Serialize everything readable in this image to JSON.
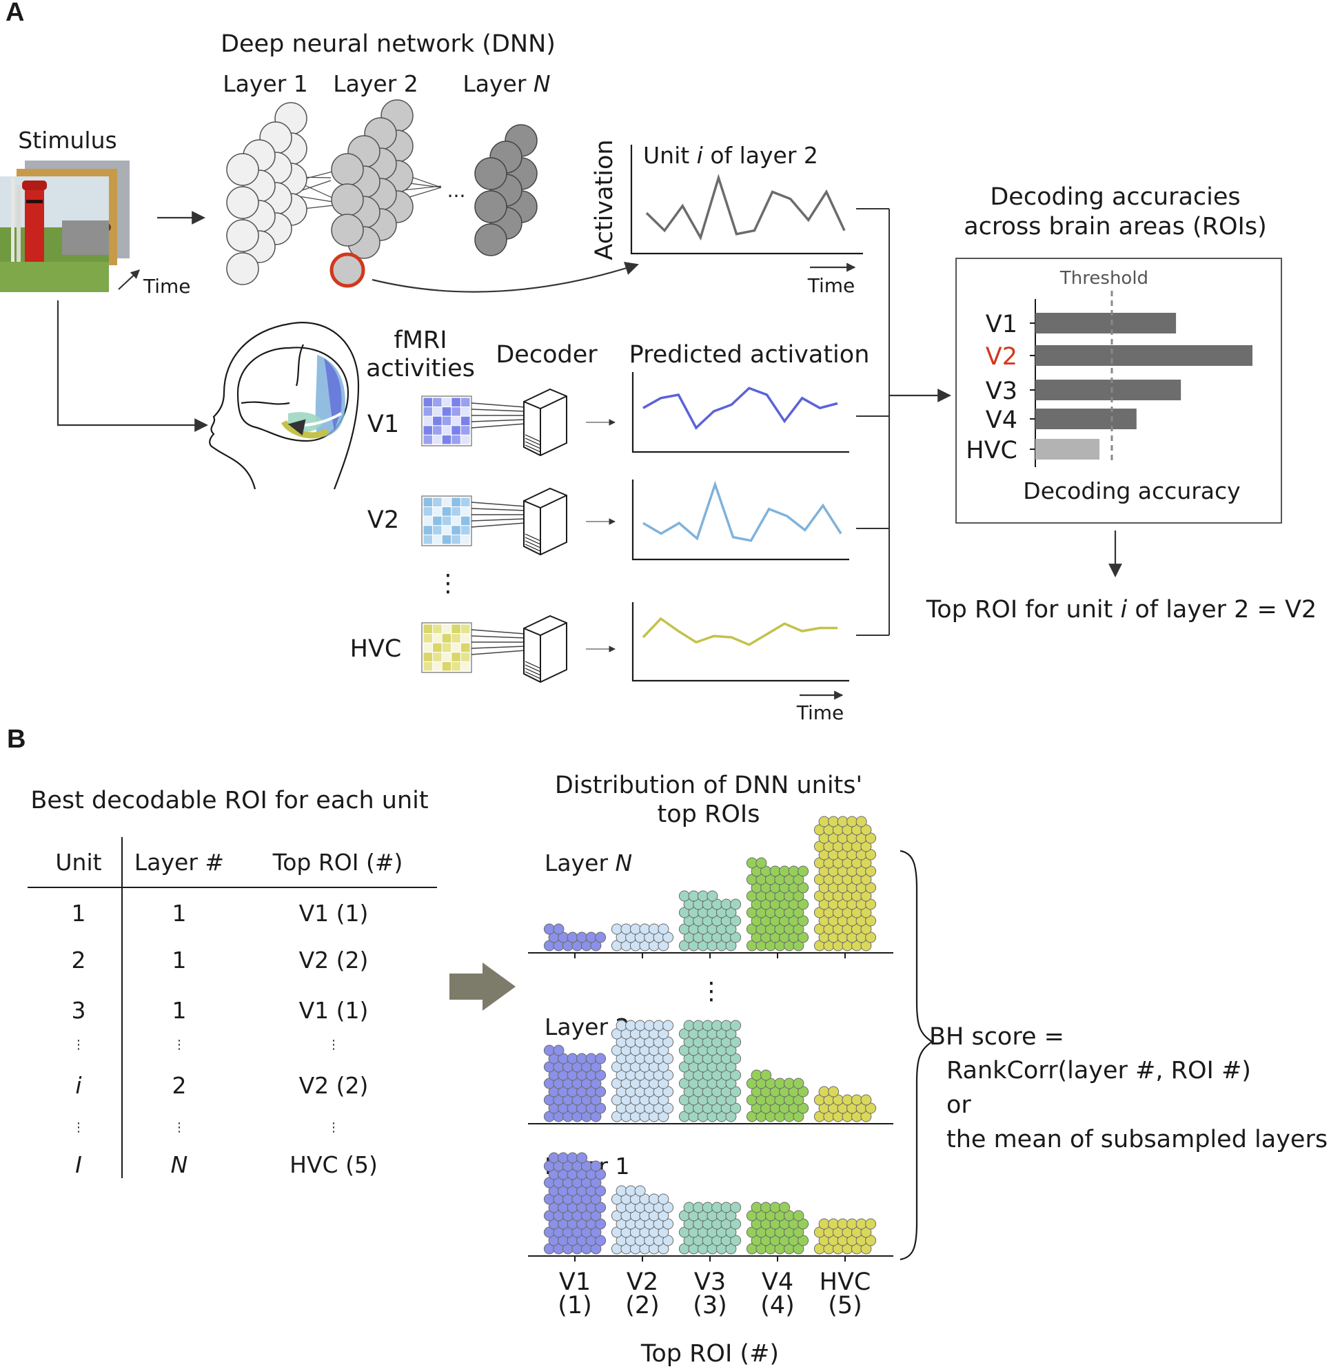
{
  "panel_a": {
    "label": "A",
    "dnn_title": "Deep neural network (DNN)",
    "layer1": "Layer 1",
    "layer2": "Layer 2",
    "layerN_prefix": "Layer ",
    "layerN_var": "N",
    "ellipsis": "...",
    "stimulus": "Stimulus",
    "time": "Time",
    "activation": "Activation",
    "unit_pre": "Unit ",
    "unit_var": "i",
    "unit_post": " of layer 2",
    "fmri_line1": "fMRI",
    "fmri_line2": "activities",
    "decoder": "Decoder",
    "predicted": "Predicted activation",
    "rois": [
      "V1",
      "V2",
      "HVC"
    ],
    "vdots": "⋮",
    "decoding_title_1": "Decoding accuracies",
    "decoding_title_2": "across brain areas (ROIs)",
    "threshold": "Threshold",
    "bar_labels": [
      "V1",
      "V2",
      "V3",
      "V4",
      "HVC"
    ],
    "decoding_axis": "Decoding accuracy",
    "top_roi_pre": "Top ROI for unit ",
    "top_roi_var": "i",
    "top_roi_post": " of layer 2 = V2",
    "colors": {
      "highlight": "#d2381c",
      "v1": "#5b62d9",
      "v2": "#7fb2db",
      "hvc": "#c3c24a",
      "bar": "#6d6d6d",
      "bar_light": "#b3b3b3"
    }
  },
  "panel_b": {
    "label": "B",
    "table_title": "Best decodable ROI for each unit",
    "headers": [
      "Unit",
      "Layer #",
      "Top ROI (#)"
    ],
    "rows": [
      [
        "1",
        "1",
        "V1 (1)"
      ],
      [
        "2",
        "1",
        "V2 (2)"
      ],
      [
        "3",
        "1",
        "V1 (1)"
      ],
      [
        "⋮",
        "⋮",
        "⋮"
      ],
      [
        "i",
        "2",
        "V2 (2)"
      ],
      [
        "⋮",
        "⋮",
        "⋮"
      ],
      [
        "I",
        "N",
        "HVC (5)"
      ]
    ],
    "dist_title_1": "Distribution of DNN units'",
    "dist_title_2": "top ROIs",
    "layer_N_prefix": "Layer ",
    "layer_N_var": "N",
    "layer_2": "Layer 2",
    "layer_1": "Layer 1",
    "vdots": "⋮",
    "xticks": [
      [
        "V1",
        "(1)"
      ],
      [
        "V2",
        "(2)"
      ],
      [
        "V3",
        "(3)"
      ],
      [
        "V4",
        "(4)"
      ],
      [
        "HVC",
        "(5)"
      ]
    ],
    "xlabel": "Top ROI (#)",
    "bh_line1": "BH score =",
    "bh_line2": "RankCorr(layer #, ROI #)",
    "bh_line3": "or",
    "bh_line4": "the mean of subsampled layers",
    "roi_colors": [
      "#8b90e8",
      "#cfe3f5",
      "#9fd6c2",
      "#95cf5a",
      "#d9d85a"
    ]
  },
  "chart_data": [
    {
      "type": "bar",
      "orientation": "horizontal",
      "title": "Decoding accuracies across brain areas (ROIs)",
      "categories": [
        "V1",
        "V2",
        "V3",
        "V4",
        "HVC"
      ],
      "values": [
        0.57,
        0.88,
        0.59,
        0.41,
        0.26
      ],
      "threshold": 0.31,
      "xlabel": "Decoding accuracy",
      "xlim": [
        0,
        1
      ]
    },
    {
      "type": "line",
      "title": "Unit i of layer 2",
      "xlabel": "Time",
      "ylabel": "Activation",
      "y": [
        0.45,
        0.2,
        0.55,
        0.1,
        0.95,
        0.15,
        0.2,
        0.75,
        0.65,
        0.35,
        0.75,
        0.2
      ]
    },
    {
      "type": "line",
      "series": [
        {
          "name": "V1",
          "y": [
            0.55,
            0.7,
            0.75,
            0.25,
            0.5,
            0.6,
            0.85,
            0.75,
            0.35,
            0.7,
            0.55,
            0.62
          ]
        },
        {
          "name": "V2",
          "y": [
            0.4,
            0.25,
            0.4,
            0.18,
            0.95,
            0.2,
            0.15,
            0.6,
            0.5,
            0.3,
            0.65,
            0.25
          ]
        },
        {
          "name": "HVC",
          "y": [
            0.5,
            0.8,
            0.6,
            0.42,
            0.52,
            0.5,
            0.38,
            0.55,
            0.72,
            0.6,
            0.65,
            0.65
          ]
        }
      ],
      "ylabel": "Predicted activation",
      "xlabel": "Time"
    },
    {
      "type": "scatter",
      "title": "Distribution of DNN units' top ROIs",
      "xlabel": "Top ROI (#)",
      "categories": [
        "V1 (1)",
        "V2 (2)",
        "V3 (3)",
        "V4 (4)",
        "HVC (5)"
      ],
      "series": [
        {
          "name": "Layer N",
          "values": [
            14,
            18,
            40,
            62,
            95
          ]
        },
        {
          "name": "Layer 2",
          "values": [
            50,
            72,
            72,
            32,
            20
          ]
        },
        {
          "name": "Layer 1",
          "values": [
            70,
            45,
            36,
            34,
            24
          ]
        }
      ]
    }
  ]
}
